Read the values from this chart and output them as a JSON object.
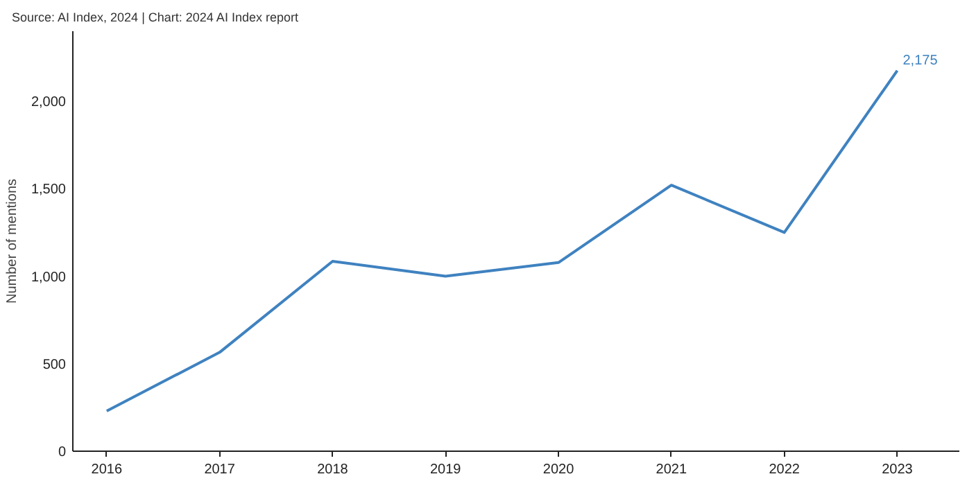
{
  "chart_data": {
    "type": "line",
    "ylabel": "Number of mentions",
    "annotations": [
      "Source: AI Index, 2024 | Chart: 2024 AI Index report",
      {
        "text": "2,175",
        "x": 2023,
        "y": 2175
      }
    ],
    "x": [
      2016,
      2017,
      2018,
      2019,
      2020,
      2021,
      2022,
      2023
    ],
    "series": [
      {
        "color": "#3f82c0",
        "values": [
          230,
          565,
          1085,
          1000,
          1078,
          1520,
          1250,
          2175
        ]
      }
    ],
    "xlim": [
      2015.7,
      2023.55
    ],
    "xticks": [
      2016,
      2017,
      2018,
      2019,
      2020,
      2021,
      2022,
      2023
    ],
    "ylim": [
      0,
      2400
    ],
    "yticks": [
      0,
      {
        "value": 500,
        "label": "500"
      },
      {
        "value": 1000,
        "label": "1,000"
      },
      {
        "value": 1500,
        "label": "1,500"
      },
      {
        "value": 2000,
        "label": "2,000"
      }
    ],
    "grid": false,
    "marker": "none",
    "line_style": "solid"
  }
}
